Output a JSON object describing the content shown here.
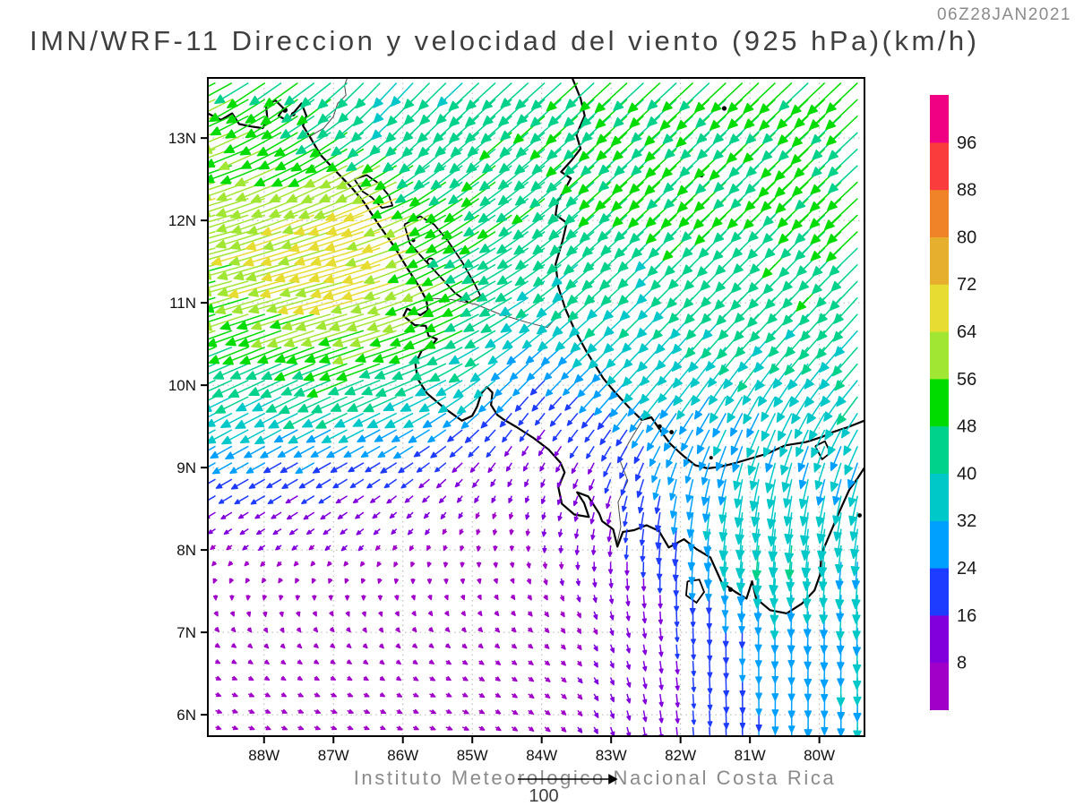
{
  "chart_data": {
    "type": "vector_field_map",
    "title": "IMN/WRF-11 Direccion y velocidad del viento (925 hPa)(km/h)",
    "timestamp": "06Z28JAN2021",
    "footer": "Instituto Meteorologico Nacional Costa Rica",
    "variable": "wind direction and speed at 925 hPa",
    "units": "km/h",
    "map_bounds": {
      "lon_min": -88.81,
      "lon_max": -79.35,
      "lat_min": 5.74,
      "lat_max": 13.73
    },
    "x_axis": {
      "ticks": [
        "88W",
        "87W",
        "86W",
        "85W",
        "84W",
        "83W",
        "82W",
        "81W",
        "80W"
      ],
      "lon_values": [
        -88,
        -87,
        -86,
        -85,
        -84,
        -83,
        -82,
        -81,
        -80
      ]
    },
    "y_axis": {
      "ticks": [
        "13N",
        "12N",
        "11N",
        "10N",
        "9N",
        "8N",
        "7N",
        "6N"
      ],
      "lat_values": [
        13,
        12,
        11,
        10,
        9,
        8,
        7,
        6
      ]
    },
    "colorbar": {
      "levels": [
        8,
        16,
        24,
        32,
        40,
        48,
        56,
        64,
        72,
        80,
        88,
        96
      ],
      "colors": [
        "#A000C8",
        "#8200DC",
        "#1E3CFF",
        "#00A0FF",
        "#00C8C8",
        "#00D28C",
        "#00DC00",
        "#A0E632",
        "#E6DC32",
        "#E6AF2D",
        "#F08228",
        "#FA3C3C",
        "#F00082"
      ]
    },
    "reference_vector": {
      "value": 100,
      "label": "100"
    },
    "grid_step": {
      "lon": 0.2372,
      "lat": 0.2005
    },
    "wind_control_points": [
      [
        -88.6,
        12.6,
        -60,
        -17
      ],
      [
        -88.6,
        11.5,
        -64,
        -10
      ],
      [
        -88.6,
        10.6,
        -52,
        -20
      ],
      [
        -87.8,
        12.1,
        -62,
        -22
      ],
      [
        -87.0,
        12.5,
        -50,
        -30
      ],
      [
        -86.35,
        11.85,
        -92,
        -22
      ],
      [
        -87.2,
        11.35,
        -72,
        -12
      ],
      [
        -86.3,
        10.95,
        -72,
        -16
      ],
      [
        -85.75,
        10.5,
        -66,
        -14
      ],
      [
        -86.6,
        10.4,
        -58,
        -16
      ],
      [
        -88.3,
        9.75,
        -40,
        -22
      ],
      [
        -87.2,
        9.9,
        -44,
        -25
      ],
      [
        -86.1,
        9.85,
        -32,
        -22
      ],
      [
        -88.5,
        9.2,
        -23,
        -15
      ],
      [
        -87.5,
        9.0,
        -15,
        -10
      ],
      [
        -86.6,
        8.8,
        -10,
        -7
      ],
      [
        -88.6,
        8.5,
        -8,
        -4
      ],
      [
        -87.6,
        8.2,
        -5,
        -3
      ],
      [
        -86.2,
        8.3,
        -3,
        -4
      ],
      [
        -85.3,
        8.6,
        -2,
        -5
      ],
      [
        -88.6,
        7.6,
        6,
        -1
      ],
      [
        -87.2,
        7.45,
        8,
        -1
      ],
      [
        -85.8,
        7.5,
        8,
        -1.5
      ],
      [
        -84.3,
        7.4,
        9,
        -1.5
      ],
      [
        -88.6,
        6.3,
        9,
        -2
      ],
      [
        -87.0,
        6.2,
        9,
        -2
      ],
      [
        -85.4,
        6.3,
        9,
        -2
      ],
      [
        -84.0,
        6.4,
        8,
        -2
      ],
      [
        -83.2,
        6.9,
        6,
        -3
      ],
      [
        -84.8,
        8.4,
        5,
        -3
      ],
      [
        -84.1,
        8.7,
        2,
        -5
      ],
      [
        -83.4,
        8.9,
        -2,
        -7
      ],
      [
        -84.2,
        9.55,
        4,
        2
      ],
      [
        -83.8,
        9.9,
        -8,
        -8
      ],
      [
        -85.35,
        9.45,
        -18,
        -13
      ],
      [
        -87.7,
        13.5,
        -34,
        -30
      ],
      [
        -86.3,
        13.55,
        -17,
        -30
      ],
      [
        -85.6,
        13.2,
        -24,
        -30
      ],
      [
        -84.6,
        13.45,
        -32,
        -32
      ],
      [
        -83.0,
        13.35,
        -36,
        -34
      ],
      [
        -80.6,
        13.35,
        -37,
        -35
      ],
      [
        -79.6,
        12.1,
        -37,
        -34
      ],
      [
        -81.6,
        12.35,
        -37,
        -34
      ],
      [
        -83.3,
        12.1,
        -36,
        -32
      ],
      [
        -84.9,
        12.3,
        -38,
        -29
      ],
      [
        -85.3,
        11.45,
        -42,
        -27
      ],
      [
        -84.75,
        10.95,
        -50,
        -23
      ],
      [
        -83.1,
        10.85,
        -33,
        -30
      ],
      [
        -80.9,
        10.85,
        -35,
        -33
      ],
      [
        -79.6,
        10.1,
        -33,
        -31
      ],
      [
        -82.1,
        10.1,
        -31,
        -30
      ],
      [
        -83.55,
        10.15,
        -27,
        -24
      ],
      [
        -84.9,
        10.4,
        -54,
        -20
      ],
      [
        -84.55,
        9.95,
        -8,
        -40
      ],
      [
        -82.5,
        9.35,
        -17,
        -24
      ],
      [
        -81.3,
        9.55,
        -14,
        -29
      ],
      [
        -80.1,
        9.35,
        -12,
        -29
      ],
      [
        -82.15,
        8.35,
        -3,
        -44
      ],
      [
        -81.75,
        8.5,
        0,
        -11
      ],
      [
        -81.2,
        8.3,
        -4,
        -60
      ],
      [
        -80.42,
        8.25,
        -2,
        -48
      ],
      [
        -79.9,
        8.7,
        -6,
        -30
      ],
      [
        -82.6,
        8.55,
        1,
        -8
      ],
      [
        -80.55,
        7.45,
        0,
        -30
      ],
      [
        -79.6,
        7.6,
        -1,
        -34
      ],
      [
        -79.6,
        6.3,
        0,
        -33
      ],
      [
        -80.6,
        6.4,
        0,
        -28
      ],
      [
        -81.4,
        6.5,
        1,
        -18
      ],
      [
        -82.3,
        6.6,
        3,
        -11
      ],
      [
        -82.8,
        7.6,
        4,
        -6
      ],
      [
        -81.9,
        7.3,
        1,
        -16
      ]
    ],
    "geo": {
      "coastlines": [
        [
          [
            -88.81,
            13.3
          ],
          [
            -88.62,
            13.22
          ],
          [
            -88.46,
            13.3
          ],
          [
            -88.36,
            13.17
          ],
          [
            -88.18,
            13.14
          ],
          [
            -88.02,
            13.12
          ],
          [
            -87.95,
            13.22
          ],
          [
            -87.97,
            13.38
          ],
          [
            -87.84,
            13.46
          ],
          [
            -87.72,
            13.36
          ],
          [
            -87.79,
            13.27
          ],
          [
            -87.67,
            13.21
          ],
          [
            -87.55,
            13.33
          ],
          [
            -87.46,
            13.42
          ],
          [
            -87.39,
            13.27
          ],
          [
            -87.44,
            13.15
          ],
          [
            -87.33,
            13.0
          ],
          [
            -87.19,
            12.8
          ],
          [
            -86.97,
            12.6
          ],
          [
            -86.74,
            12.4
          ],
          [
            -86.56,
            12.22
          ],
          [
            -86.35,
            11.95
          ],
          [
            -86.13,
            11.69
          ],
          [
            -85.93,
            11.41
          ],
          [
            -85.76,
            11.19
          ],
          [
            -85.66,
            11.03
          ],
          [
            -85.64,
            10.91
          ],
          [
            -85.75,
            10.85
          ],
          [
            -85.94,
            10.93
          ],
          [
            -85.99,
            10.84
          ],
          [
            -85.83,
            10.73
          ],
          [
            -85.67,
            10.72
          ],
          [
            -85.63,
            10.6
          ],
          [
            -85.51,
            10.56
          ],
          [
            -85.6,
            10.47
          ],
          [
            -85.73,
            10.42
          ],
          [
            -85.82,
            10.26
          ],
          [
            -85.79,
            10.08
          ],
          [
            -85.65,
            9.9
          ],
          [
            -85.4,
            9.72
          ],
          [
            -85.15,
            9.57
          ],
          [
            -85.0,
            9.63
          ],
          [
            -84.93,
            9.74
          ],
          [
            -84.87,
            9.9
          ],
          [
            -84.79,
            9.98
          ],
          [
            -84.71,
            9.91
          ],
          [
            -84.73,
            9.76
          ],
          [
            -84.64,
            9.64
          ],
          [
            -84.56,
            9.59
          ],
          [
            -84.36,
            9.49
          ],
          [
            -84.12,
            9.36
          ],
          [
            -83.9,
            9.22
          ],
          [
            -83.73,
            9.06
          ],
          [
            -83.67,
            8.94
          ],
          [
            -83.76,
            8.76
          ],
          [
            -83.71,
            8.56
          ],
          [
            -83.53,
            8.43
          ],
          [
            -83.32,
            8.4
          ],
          [
            -83.39,
            8.57
          ],
          [
            -83.49,
            8.7
          ],
          [
            -83.33,
            8.65
          ],
          [
            -83.17,
            8.44
          ],
          [
            -83.13,
            8.35
          ],
          [
            -82.97,
            8.25
          ],
          [
            -82.91,
            8.04
          ],
          [
            -82.83,
            8.22
          ],
          [
            -82.67,
            8.24
          ],
          [
            -82.49,
            8.3
          ],
          [
            -82.31,
            8.23
          ],
          [
            -82.17,
            8.03
          ],
          [
            -81.95,
            8.13
          ],
          [
            -81.77,
            8.01
          ],
          [
            -81.57,
            7.91
          ],
          [
            -81.41,
            7.61
          ],
          [
            -81.21,
            7.49
          ],
          [
            -81.05,
            7.41
          ],
          [
            -80.97,
            7.62
          ],
          [
            -80.91,
            7.41
          ],
          [
            -80.71,
            7.27
          ],
          [
            -80.47,
            7.23
          ],
          [
            -80.25,
            7.35
          ],
          [
            -80.07,
            7.51
          ],
          [
            -79.99,
            7.7
          ],
          [
            -79.97,
            7.95
          ],
          [
            -79.87,
            8.15
          ],
          [
            -79.73,
            8.43
          ],
          [
            -79.57,
            8.73
          ],
          [
            -79.45,
            8.87
          ],
          [
            -79.35,
            9.0
          ]
        ],
        [
          [
            -83.56,
            13.73
          ],
          [
            -83.44,
            13.48
          ],
          [
            -83.38,
            13.27
          ],
          [
            -83.5,
            13.04
          ],
          [
            -83.44,
            12.87
          ],
          [
            -83.57,
            12.73
          ],
          [
            -83.72,
            12.59
          ],
          [
            -83.58,
            12.51
          ],
          [
            -83.67,
            12.37
          ],
          [
            -83.77,
            12.23
          ],
          [
            -83.8,
            12.07
          ],
          [
            -83.64,
            11.97
          ],
          [
            -83.7,
            11.75
          ],
          [
            -83.8,
            11.47
          ],
          [
            -83.76,
            11.19
          ],
          [
            -83.66,
            10.93
          ],
          [
            -83.53,
            10.68
          ],
          [
            -83.35,
            10.4
          ],
          [
            -83.11,
            10.08
          ],
          [
            -82.93,
            9.9
          ],
          [
            -82.73,
            9.72
          ],
          [
            -82.56,
            9.58
          ],
          [
            -82.42,
            9.61
          ],
          [
            -82.29,
            9.45
          ],
          [
            -82.15,
            9.29
          ],
          [
            -81.97,
            9.15
          ],
          [
            -81.79,
            9.03
          ],
          [
            -81.61,
            8.99
          ],
          [
            -81.43,
            9.01
          ],
          [
            -81.23,
            9.05
          ],
          [
            -80.99,
            9.11
          ],
          [
            -80.75,
            9.17
          ],
          [
            -80.49,
            9.27
          ],
          [
            -80.19,
            9.31
          ],
          [
            -79.97,
            9.37
          ],
          [
            -79.81,
            9.43
          ],
          [
            -79.59,
            9.49
          ],
          [
            -79.35,
            9.57
          ]
        ]
      ],
      "lakes": [
        [
          [
            -86.7,
            12.5
          ],
          [
            -86.52,
            12.55
          ],
          [
            -86.35,
            12.45
          ],
          [
            -86.2,
            12.3
          ],
          [
            -86.15,
            12.18
          ],
          [
            -86.3,
            12.15
          ],
          [
            -86.45,
            12.28
          ],
          [
            -86.58,
            12.35
          ],
          [
            -86.7,
            12.5
          ]
        ],
        [
          [
            -85.98,
            11.95
          ],
          [
            -85.75,
            12.05
          ],
          [
            -85.55,
            11.95
          ],
          [
            -85.35,
            11.75
          ],
          [
            -85.15,
            11.5
          ],
          [
            -84.98,
            11.25
          ],
          [
            -84.88,
            11.08
          ],
          [
            -85.05,
            11.0
          ],
          [
            -85.25,
            11.12
          ],
          [
            -85.5,
            11.35
          ],
          [
            -85.72,
            11.55
          ],
          [
            -85.9,
            11.72
          ],
          [
            -85.98,
            11.95
          ]
        ],
        [
          [
            -80.06,
            9.26
          ],
          [
            -79.92,
            9.32
          ],
          [
            -79.84,
            9.18
          ],
          [
            -79.96,
            9.1
          ],
          [
            -80.06,
            9.26
          ]
        ]
      ],
      "borders": [
        [
          [
            -87.34,
            13.02
          ],
          [
            -87.14,
            13.12
          ],
          [
            -87.0,
            13.26
          ],
          [
            -86.94,
            13.42
          ],
          [
            -86.82,
            13.52
          ],
          [
            -86.84,
            13.64
          ],
          [
            -86.8,
            13.73
          ]
        ],
        [
          [
            -85.68,
            11.06
          ],
          [
            -85.3,
            11.04
          ],
          [
            -84.94,
            10.98
          ],
          [
            -84.6,
            10.86
          ],
          [
            -84.2,
            10.76
          ],
          [
            -83.92,
            10.7
          ],
          [
            -83.66,
            10.94
          ]
        ],
        [
          [
            -82.56,
            9.56
          ],
          [
            -82.72,
            9.34
          ],
          [
            -82.88,
            9.1
          ],
          [
            -82.76,
            8.84
          ],
          [
            -82.9,
            8.58
          ],
          [
            -82.86,
            8.28
          ],
          [
            -82.92,
            8.06
          ]
        ]
      ],
      "islands_points": [
        [
          -87.7,
          13.34,
          3
        ],
        [
          -87.58,
          13.29,
          2.5
        ],
        [
          -85.6,
          11.5,
          3.6
        ],
        [
          -85.85,
          11.76,
          2.2
        ],
        [
          -81.7,
          12.55,
          2.6
        ],
        [
          -81.37,
          13.36,
          2.6
        ],
        [
          -82.3,
          9.5,
          2.4
        ],
        [
          -82.13,
          9.43,
          2.4
        ],
        [
          -81.56,
          9.12,
          2
        ],
        [
          -81.28,
          7.52,
          2.6
        ],
        [
          -79.42,
          8.42,
          2.4
        ]
      ],
      "islands_polygons": [
        [
          [
            -81.9,
            7.62
          ],
          [
            -81.73,
            7.64
          ],
          [
            -81.66,
            7.49
          ],
          [
            -81.77,
            7.36
          ],
          [
            -81.92,
            7.45
          ],
          [
            -81.9,
            7.62
          ]
        ]
      ]
    }
  }
}
